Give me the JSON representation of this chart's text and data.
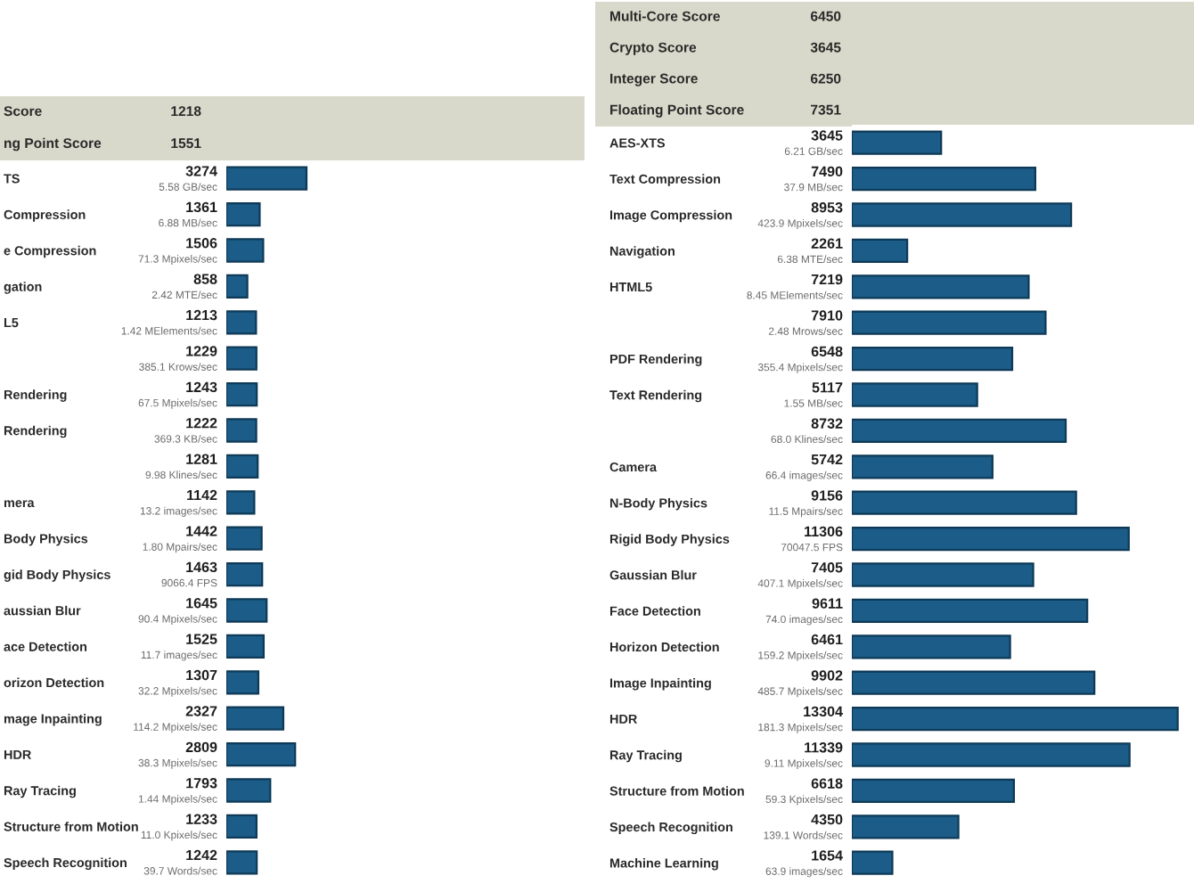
{
  "chart_data": [
    {
      "type": "other",
      "categories": [
        "Score",
        "ng Point Score"
      ],
      "values": [
        1218,
        1551
      ],
      "data_labels": true
    },
    {
      "type": "bar",
      "orientation": "horizontal",
      "tick_labels": "y",
      "color": "#1b5c88",
      "data_labels": true,
      "categories": [
        "TS",
        "Compression",
        "e Compression",
        "gation",
        "L5",
        null,
        "Rendering",
        "Rendering",
        null,
        "mera",
        "Body Physics",
        "gid Body Physics",
        "aussian Blur",
        "ace Detection",
        "orizon Detection",
        "mage Inpainting",
        "HDR",
        "Ray Tracing",
        "Structure from Motion",
        "Speech Recognition"
      ],
      "values": [
        3274,
        1361,
        1506,
        858,
        1213,
        1229,
        1243,
        1222,
        1281,
        1142,
        1442,
        1463,
        1645,
        1525,
        1307,
        2327,
        2809,
        1793,
        1233,
        1242
      ],
      "annotations": [
        "5.58 GB/sec",
        "6.88 MB/sec",
        "71.3 Mpixels/sec",
        "2.42 MTE/sec",
        "1.42 MElements/sec",
        "385.1 Krows/sec",
        "67.5 Mpixels/sec",
        "369.3 KB/sec",
        "9.98 Klines/sec",
        "13.2 images/sec",
        "1.80 Mpairs/sec",
        "9066.4 FPS",
        "90.4 Mpixels/sec",
        "11.7 images/sec",
        "32.2 Mpixels/sec",
        "114.2 Mpixels/sec",
        "38.3 Mpixels/sec",
        "1.44 Mpixels/sec",
        "11.0 Kpixels/sec",
        "39.7 Words/sec"
      ]
    },
    {
      "type": "other",
      "categories": [
        "Multi-Core Score",
        "Crypto Score",
        "Integer Score",
        "Floating Point Score"
      ],
      "values": [
        6450,
        3645,
        6250,
        7351
      ],
      "data_labels": true
    },
    {
      "type": "bar",
      "orientation": "horizontal",
      "tick_labels": "y",
      "color": "#1b5c88",
      "data_labels": true,
      "categories": [
        "AES-XTS",
        "Text Compression",
        "Image Compression",
        "Navigation",
        "HTML5",
        null,
        "PDF Rendering",
        "Text Rendering",
        null,
        "Camera",
        "N-Body Physics",
        "Rigid Body Physics",
        "Gaussian Blur",
        "Face Detection",
        "Horizon Detection",
        "Image Inpainting",
        "HDR",
        "Ray Tracing",
        "Structure from Motion",
        "Speech Recognition",
        "Machine Learning"
      ],
      "values": [
        3645,
        7490,
        8953,
        2261,
        7219,
        7910,
        6548,
        5117,
        8732,
        5742,
        9156,
        11306,
        7405,
        9611,
        6461,
        9902,
        13304,
        11339,
        6618,
        4350,
        1654
      ],
      "annotations": [
        "6.21 GB/sec",
        "37.9 MB/sec",
        "423.9 Mpixels/sec",
        "6.38 MTE/sec",
        "8.45 MElements/sec",
        "2.48 Mrows/sec",
        "355.4 Mpixels/sec",
        "1.55 MB/sec",
        "68.0 Klines/sec",
        "66.4 images/sec",
        "11.5 Mpairs/sec",
        "70047.5 FPS",
        "407.1 Mpixels/sec",
        "74.0 images/sec",
        "159.2 Mpixels/sec",
        "485.7 Mpixels/sec",
        "181.3 Mpixels/sec",
        "9.11 Mpixels/sec",
        "59.3 Kpixels/sec",
        "139.1 Words/sec",
        "63.9 images/sec"
      ]
    }
  ]
}
